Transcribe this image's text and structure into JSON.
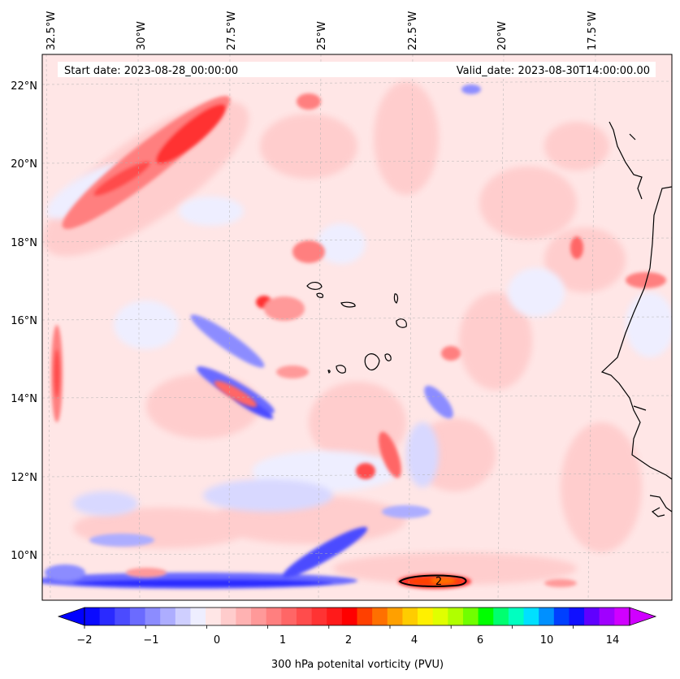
{
  "map": {
    "header": {
      "start_date": "Start date: 2023-08-28_00:00:00",
      "valid_date": "Valid_date: 2023-08-30T14:00:00.00"
    },
    "lon_labels": [
      "32.5°W",
      "30°W",
      "27.5°W",
      "25°W",
      "22.5°W",
      "20°W",
      "17.5°W"
    ],
    "lat_labels": [
      "22°N",
      "20°N",
      "18°N",
      "16°N",
      "14°N",
      "12°N",
      "10°N"
    ],
    "contour_label": "2",
    "colorbar": {
      "title": "300 hPa potenital vorticity (PVU)",
      "tick_labels": [
        "−2",
        "−1",
        "0",
        "1",
        "2",
        "4",
        "6",
        "10",
        "14"
      ],
      "colors": [
        "#0a0aff",
        "#2a2aff",
        "#4b4bff",
        "#6b6bff",
        "#8c8cff",
        "#adadff",
        "#cfcfff",
        "#eeeeff",
        "#ffe6e6",
        "#ffcccc",
        "#ffb2b2",
        "#ff9999",
        "#ff7f7f",
        "#ff6666",
        "#ff4c4c",
        "#ff3333",
        "#ff1a1a",
        "#ff0000",
        "#ff4000",
        "#ff7000",
        "#ffa000",
        "#ffcc00",
        "#fff000",
        "#e0ff00",
        "#b0ff00",
        "#70ff00",
        "#00ff00",
        "#00ff70",
        "#00ffc0",
        "#00e0ff",
        "#0090ff",
        "#0040ff",
        "#1010ff",
        "#6000ff",
        "#a000ff",
        "#d000ff"
      ]
    },
    "colors": {
      "background_field": "#ffe6e6",
      "pv_positive_light": "#ffb2b2",
      "pv_positive_strong": "#ff3333",
      "pv_negative_light": "#adadff",
      "pv_negative_strong": "#2a2aff",
      "coastline": "#000000"
    }
  }
}
